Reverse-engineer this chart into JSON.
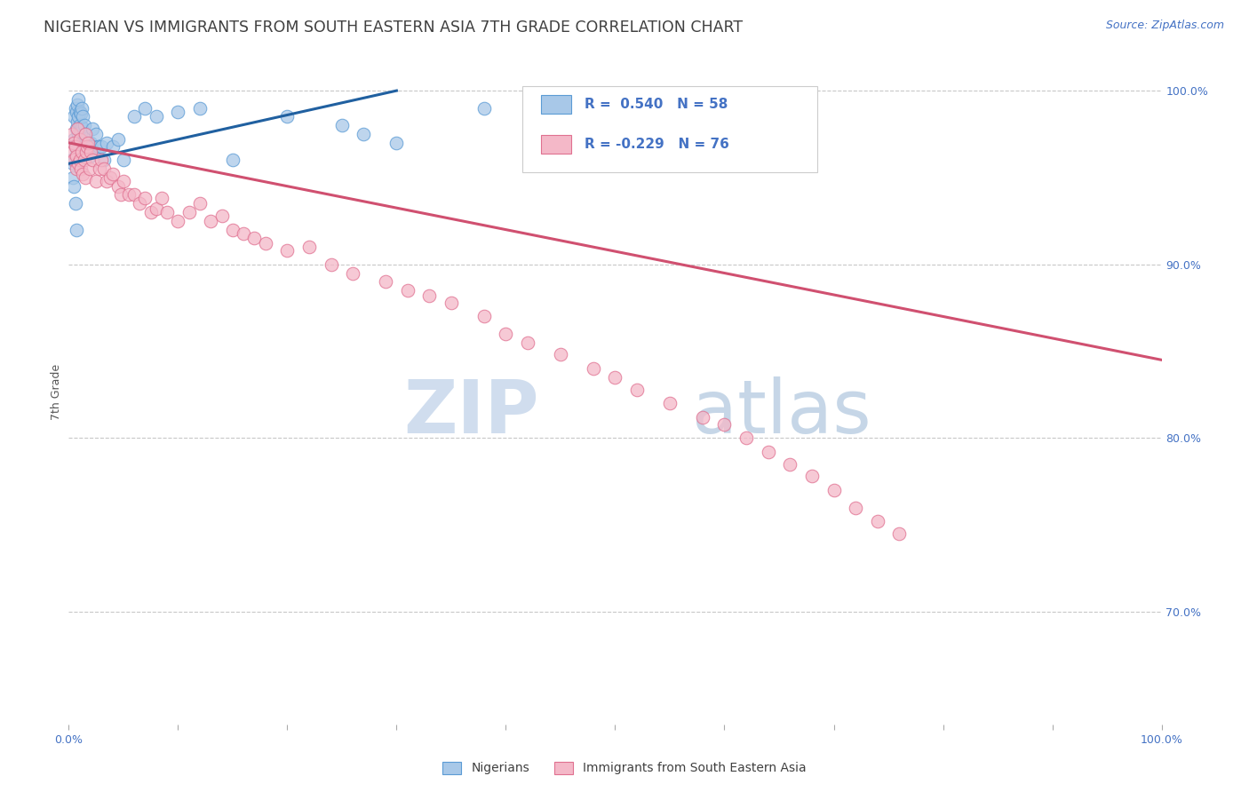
{
  "title": "NIGERIAN VS IMMIGRANTS FROM SOUTH EASTERN ASIA 7TH GRADE CORRELATION CHART",
  "source": "Source: ZipAtlas.com",
  "ylabel": "7th Grade",
  "legend_blue_r": "R =  0.540",
  "legend_blue_n": "N = 58",
  "legend_pink_r": "R = -0.229",
  "legend_pink_n": "N = 76",
  "legend_blue_label": "Nigerians",
  "legend_pink_label": "Immigrants from South Eastern Asia",
  "blue_color": "#a8c8e8",
  "pink_color": "#f4b8c8",
  "blue_edge_color": "#5b9bd5",
  "pink_edge_color": "#e07090",
  "blue_line_color": "#2060a0",
  "pink_line_color": "#d05070",
  "title_color": "#404040",
  "right_axis_color": "#4472c4",
  "ytick_right": [
    "100.0%",
    "90.0%",
    "80.0%",
    "70.0%"
  ],
  "ytick_right_vals": [
    1.0,
    0.9,
    0.8,
    0.7
  ],
  "blue_x": [
    0.003,
    0.004,
    0.005,
    0.005,
    0.006,
    0.006,
    0.007,
    0.007,
    0.007,
    0.008,
    0.008,
    0.008,
    0.009,
    0.009,
    0.009,
    0.01,
    0.01,
    0.01,
    0.011,
    0.011,
    0.012,
    0.012,
    0.013,
    0.013,
    0.014,
    0.015,
    0.015,
    0.016,
    0.017,
    0.018,
    0.019,
    0.02,
    0.021,
    0.022,
    0.023,
    0.025,
    0.027,
    0.03,
    0.032,
    0.035,
    0.04,
    0.045,
    0.05,
    0.06,
    0.07,
    0.08,
    0.1,
    0.12,
    0.15,
    0.2,
    0.25,
    0.27,
    0.3,
    0.38,
    0.004,
    0.005,
    0.006,
    0.007
  ],
  "blue_y": [
    0.96,
    0.958,
    0.985,
    0.972,
    0.99,
    0.968,
    0.988,
    0.978,
    0.963,
    0.992,
    0.982,
    0.97,
    0.995,
    0.985,
    0.975,
    0.988,
    0.98,
    0.972,
    0.987,
    0.976,
    0.99,
    0.979,
    0.985,
    0.97,
    0.98,
    0.975,
    0.965,
    0.97,
    0.968,
    0.965,
    0.962,
    0.97,
    0.968,
    0.978,
    0.965,
    0.975,
    0.968,
    0.968,
    0.96,
    0.97,
    0.968,
    0.972,
    0.96,
    0.985,
    0.99,
    0.985,
    0.988,
    0.99,
    0.96,
    0.985,
    0.98,
    0.975,
    0.97,
    0.99,
    0.95,
    0.945,
    0.935,
    0.92
  ],
  "pink_x": [
    0.003,
    0.004,
    0.005,
    0.005,
    0.006,
    0.007,
    0.007,
    0.008,
    0.009,
    0.01,
    0.01,
    0.011,
    0.012,
    0.013,
    0.014,
    0.015,
    0.015,
    0.016,
    0.017,
    0.018,
    0.019,
    0.02,
    0.022,
    0.025,
    0.028,
    0.03,
    0.032,
    0.035,
    0.038,
    0.04,
    0.045,
    0.048,
    0.05,
    0.055,
    0.06,
    0.065,
    0.07,
    0.075,
    0.08,
    0.085,
    0.09,
    0.1,
    0.11,
    0.12,
    0.13,
    0.14,
    0.15,
    0.16,
    0.17,
    0.18,
    0.2,
    0.22,
    0.24,
    0.26,
    0.29,
    0.31,
    0.33,
    0.35,
    0.38,
    0.4,
    0.42,
    0.45,
    0.48,
    0.5,
    0.52,
    0.55,
    0.58,
    0.6,
    0.62,
    0.64,
    0.66,
    0.68,
    0.7,
    0.72,
    0.74,
    0.76
  ],
  "pink_y": [
    0.975,
    0.965,
    0.96,
    0.97,
    0.968,
    0.962,
    0.955,
    0.978,
    0.958,
    0.972,
    0.96,
    0.955,
    0.965,
    0.952,
    0.96,
    0.95,
    0.975,
    0.965,
    0.968,
    0.97,
    0.955,
    0.965,
    0.96,
    0.948,
    0.955,
    0.96,
    0.955,
    0.948,
    0.95,
    0.952,
    0.945,
    0.94,
    0.948,
    0.94,
    0.94,
    0.935,
    0.938,
    0.93,
    0.932,
    0.938,
    0.93,
    0.925,
    0.93,
    0.935,
    0.925,
    0.928,
    0.92,
    0.918,
    0.915,
    0.912,
    0.908,
    0.91,
    0.9,
    0.895,
    0.89,
    0.885,
    0.882,
    0.878,
    0.87,
    0.86,
    0.855,
    0.848,
    0.84,
    0.835,
    0.828,
    0.82,
    0.812,
    0.808,
    0.8,
    0.792,
    0.785,
    0.778,
    0.77,
    0.76,
    0.752,
    0.745
  ],
  "blue_line_x": [
    0.0,
    0.3
  ],
  "blue_line_y": [
    0.958,
    1.0
  ],
  "pink_line_x": [
    0.0,
    1.0
  ],
  "pink_line_y": [
    0.97,
    0.845
  ],
  "xlim": [
    0.0,
    1.0
  ],
  "ylim": [
    0.635,
    1.018
  ],
  "background_color": "#ffffff",
  "grid_color": "#c8c8c8",
  "title_fontsize": 12.5,
  "label_fontsize": 9
}
